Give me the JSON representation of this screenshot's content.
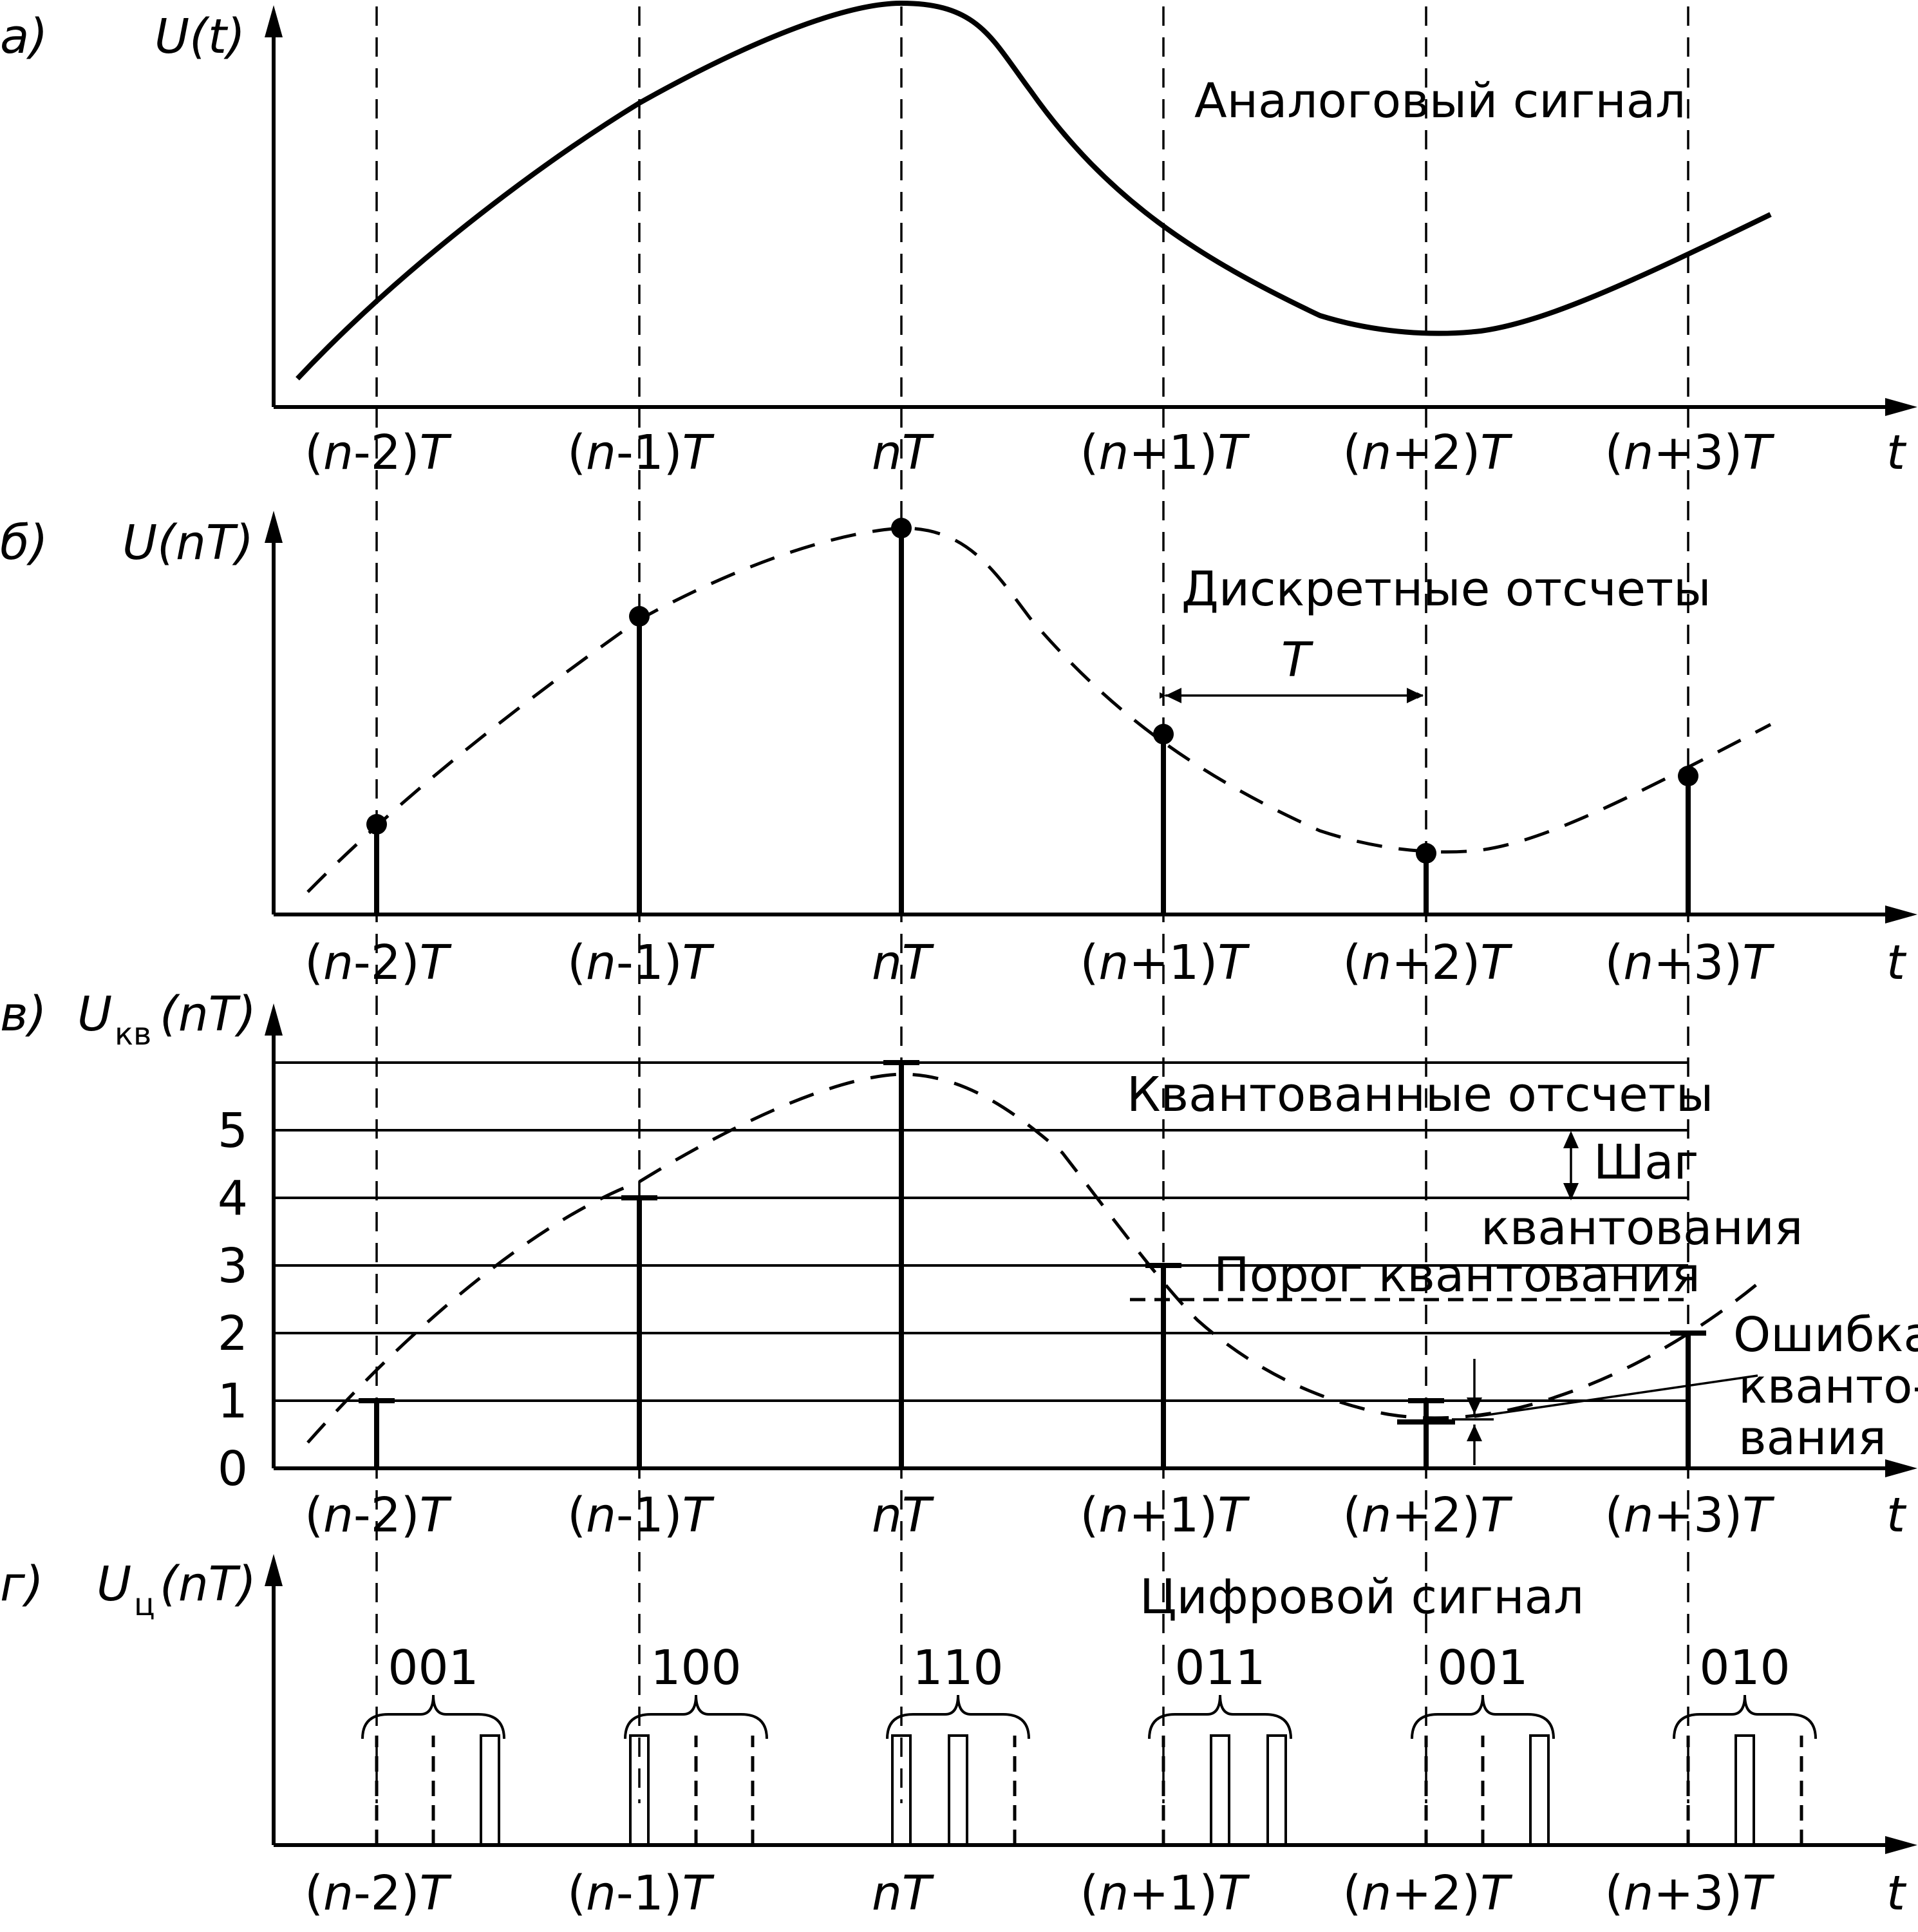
{
  "panels": [
    {
      "id": "a",
      "letter": "а)",
      "ylabel": "U(t)",
      "caption": "Аналоговый сигнал"
    },
    {
      "id": "b",
      "letter": "б)",
      "ylabel": "U(nT)",
      "caption": "Дискретные отсчеты",
      "period_label": "T"
    },
    {
      "id": "c",
      "letter": "в)",
      "ylabel_main": "U",
      "ylabel_sub": "кв",
      "ylabel_tail": "(nT)",
      "caption": "Квантованные отсчеты"
    },
    {
      "id": "d",
      "letter": "г)",
      "ylabel_main": "U",
      "ylabel_sub": "ц",
      "ylabel_tail": "(nT)",
      "caption": "Цифровой сигнал"
    }
  ],
  "time_ticks": [
    {
      "pre": "(",
      "var": "n",
      "mid": "-2)",
      "post": "T"
    },
    {
      "pre": "(",
      "var": "n",
      "mid": "-1)",
      "post": "T"
    },
    {
      "pre": "",
      "var": "nT",
      "mid": "",
      "post": ""
    },
    {
      "pre": "(",
      "var": "n",
      "mid": "+1)",
      "post": "T"
    },
    {
      "pre": "(",
      "var": "n",
      "mid": "+2)",
      "post": "T"
    },
    {
      "pre": "(",
      "var": "n",
      "mid": "+3)",
      "post": "T"
    }
  ],
  "time_axis_label": "t",
  "level_ticks": [
    "0",
    "1",
    "2",
    "3",
    "4",
    "5"
  ],
  "annotations": {
    "step_line1": "Шаг",
    "step_line2": "квантования",
    "threshold": "Порог квантования",
    "error_line1": "Ошибка",
    "error_line2": "кванто-",
    "error_line3": "вания"
  },
  "chart_data": {
    "type": "line",
    "x": [
      "(n-2)T",
      "(n-1)T",
      "nT",
      "(n+1)T",
      "(n+2)T",
      "(n+3)T"
    ],
    "sample_levels": [
      1.45,
      4.3,
      5.75,
      2.9,
      0.8,
      2.05
    ],
    "quantized_levels": [
      1,
      4,
      6,
      3,
      1,
      2
    ],
    "codes": [
      "001",
      "100",
      "110",
      "011",
      "001",
      "010"
    ],
    "ylim": [
      0,
      6
    ]
  }
}
